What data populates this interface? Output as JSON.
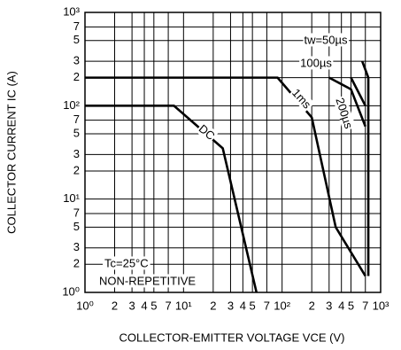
{
  "chart_data": {
    "type": "line",
    "y_label": "COLLECTOR CURRENT   IC (A)",
    "x_label": "COLLECTOR-EMITTER VOLTAGE   VCE (V)",
    "log_x": true,
    "log_y": true,
    "grid": true,
    "color": "#000000",
    "xlim": [
      1,
      1000
    ],
    "ylim": [
      1,
      1000
    ],
    "xticks": [
      {
        "value": 1,
        "label": "10⁰"
      },
      2,
      3,
      4,
      5,
      7,
      {
        "value": 10,
        "label": "10¹"
      },
      2,
      3,
      4,
      5,
      7,
      {
        "value": 100,
        "label": "10²"
      },
      2,
      3,
      4,
      5,
      7,
      {
        "value": 1000,
        "label": "10³"
      }
    ],
    "yticks": [
      {
        "value": 1,
        "label": "10⁰"
      },
      2,
      3,
      5,
      7,
      {
        "value": 10,
        "label": "10¹"
      },
      2,
      3,
      5,
      7,
      {
        "value": 100,
        "label": "10²"
      },
      2,
      3,
      5,
      7,
      {
        "value": 1000,
        "label": "10³"
      }
    ],
    "series": [
      {
        "name": "DC",
        "x": [
          1,
          8,
          25,
          55
        ],
        "values": [
          100,
          100,
          35,
          1
        ]
      },
      {
        "name": "1ms",
        "x": [
          1,
          90,
          200,
          350,
          700
        ],
        "values": [
          200,
          200,
          75,
          5,
          1.5
        ]
      },
      {
        "name": "200µs",
        "x": [
          300,
          500,
          700
        ],
        "values": [
          200,
          150,
          60
        ]
      },
      {
        "name": "100µs",
        "x": [
          500,
          700
        ],
        "values": [
          200,
          100
        ]
      },
      {
        "name": "tw=50µs",
        "x": [
          650,
          750,
          750
        ],
        "values": [
          300,
          200,
          1.5
        ]
      }
    ],
    "annotations": [
      "Tc=25°C",
      "NON-REPETITIVE"
    ]
  }
}
